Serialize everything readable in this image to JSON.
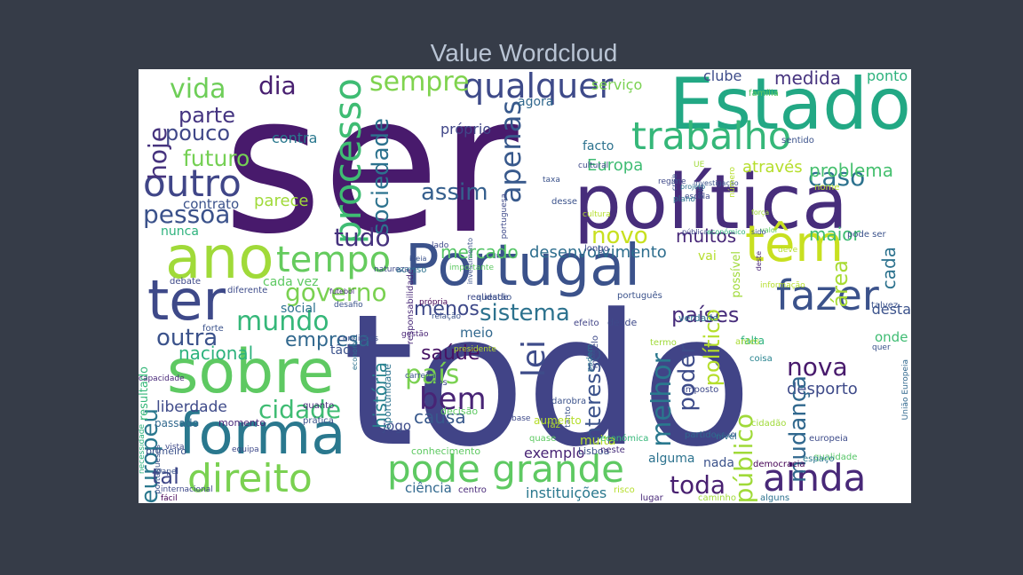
{
  "chart_data": {
    "type": "wordcloud",
    "title": "Value Wordcloud",
    "words": [
      {
        "text": "ser",
        "color": "#481a6c"
      },
      {
        "text": "todo",
        "color": "#414487"
      },
      {
        "text": "política",
        "color": "#472d7b"
      },
      {
        "text": "Estado",
        "color": "#22a884"
      },
      {
        "text": "Portugal",
        "color": "#3b528b"
      },
      {
        "text": "ano",
        "color": "#a0da39"
      },
      {
        "text": "ter",
        "color": "#3e4989"
      },
      {
        "text": "sobre",
        "color": "#5ec962"
      },
      {
        "text": "forma",
        "color": "#2a788e"
      },
      {
        "text": "trabalho",
        "color": "#35b779"
      },
      {
        "text": "têm",
        "color": "#c8e020"
      },
      {
        "text": "fazer",
        "color": "#3b528b"
      },
      {
        "text": "ainda",
        "color": "#482878"
      },
      {
        "text": "direito",
        "color": "#7ad151"
      },
      {
        "text": "pode grande",
        "color": "#5ec962"
      },
      {
        "text": "tempo",
        "color": "#65cb5e"
      },
      {
        "text": "outro",
        "color": "#404688"
      },
      {
        "text": "qualquer",
        "color": "#3e4a89"
      },
      {
        "text": "sempre",
        "color": "#7fd34e"
      },
      {
        "text": "vida",
        "color": "#6ece58"
      },
      {
        "text": "hoje",
        "color": "#46337e"
      },
      {
        "text": "dia",
        "color": "#481f70"
      },
      {
        "text": "parte",
        "color": "#453581"
      },
      {
        "text": "pouco",
        "color": "#3f4788"
      },
      {
        "text": "futuro",
        "color": "#75d054"
      },
      {
        "text": "pessoa",
        "color": "#3b528b"
      },
      {
        "text": "processo",
        "color": "#3fbc73"
      },
      {
        "text": "sociedade",
        "color": "#2c728e"
      },
      {
        "text": "apenas",
        "color": "#38598c"
      },
      {
        "text": "assim",
        "color": "#355f8d"
      },
      {
        "text": "tudo",
        "color": "#46327e"
      },
      {
        "text": "governo",
        "color": "#7ad151"
      },
      {
        "text": "mundo",
        "color": "#35b779"
      },
      {
        "text": "outra",
        "color": "#3b528b"
      },
      {
        "text": "empresa",
        "color": "#31688e"
      },
      {
        "text": "nacional",
        "color": "#2db27d"
      },
      {
        "text": "cidade",
        "color": "#3fbc73"
      },
      {
        "text": "europeu",
        "color": "#2a788e"
      },
      {
        "text": "liberdade",
        "color": "#3e4a89"
      },
      {
        "text": "tal",
        "color": "#3f4788"
      },
      {
        "text": "sistema",
        "color": "#2c728e"
      },
      {
        "text": "menos",
        "color": "#3e4989"
      },
      {
        "text": "saúde",
        "color": "#471365"
      },
      {
        "text": "país",
        "color": "#7ad151"
      },
      {
        "text": "bem",
        "color": "#482475"
      },
      {
        "text": "causa",
        "color": "#38598c"
      },
      {
        "text": "lei",
        "color": "#3e4c8a"
      },
      {
        "text": "interesse",
        "color": "#3b528b"
      },
      {
        "text": "melhor",
        "color": "#2a788e"
      },
      {
        "text": "poder",
        "color": "#3e4c8a"
      },
      {
        "text": "países",
        "color": "#472d7b"
      },
      {
        "text": "nova",
        "color": "#481a6c"
      },
      {
        "text": "desporto",
        "color": "#3e4a89"
      },
      {
        "text": "mudança",
        "color": "#31688e"
      },
      {
        "text": "público",
        "color": "#a0da39"
      },
      {
        "text": "político",
        "color": "#b5de2b"
      },
      {
        "text": "área",
        "color": "#a8db34"
      },
      {
        "text": "toda",
        "color": "#481f70"
      },
      {
        "text": "caso",
        "color": "#2c728e"
      },
      {
        "text": "problema",
        "color": "#46c06f"
      },
      {
        "text": "maior",
        "color": "#3fbc73"
      },
      {
        "text": "cada",
        "color": "#2c728e"
      },
      {
        "text": "novo",
        "color": "#c8e020"
      },
      {
        "text": "muitos",
        "color": "#482878"
      },
      {
        "text": "mercado",
        "color": "#56c667"
      },
      {
        "text": "desenvolvimento",
        "color": "#2e6e8e"
      },
      {
        "text": "medida",
        "color": "#46337e"
      },
      {
        "text": "clube",
        "color": "#3e4c8a"
      },
      {
        "text": "ponto",
        "color": "#2db27d"
      },
      {
        "text": "serviço",
        "color": "#7ad151"
      },
      {
        "text": "agora",
        "color": "#31688e"
      },
      {
        "text": "próprio",
        "color": "#404688"
      },
      {
        "text": "facto",
        "color": "#2c728e"
      },
      {
        "text": "Europa",
        "color": "#3fbc73"
      },
      {
        "text": "através",
        "color": "#b5de2b"
      },
      {
        "text": "contra",
        "color": "#2a788e"
      },
      {
        "text": "parece",
        "color": "#a0da39"
      },
      {
        "text": "contrato",
        "color": "#3b528b"
      },
      {
        "text": "nunca",
        "color": "#2db27d"
      },
      {
        "text": "social",
        "color": "#2c728e"
      },
      {
        "text": "cada vez",
        "color": "#5ec962"
      },
      {
        "text": "meio",
        "color": "#31688e"
      },
      {
        "text": "tão",
        "color": "#3b528b"
      },
      {
        "text": "jogo",
        "color": "#3e4c8a"
      },
      {
        "text": "exemplo",
        "color": "#482475"
      },
      {
        "text": "história",
        "color": "#26828e"
      },
      {
        "text": "ciência",
        "color": "#31688e"
      },
      {
        "text": "instituições",
        "color": "#2a788e"
      },
      {
        "text": "alguma",
        "color": "#2c728e"
      },
      {
        "text": "nada",
        "color": "#3b528b"
      },
      {
        "text": "desta",
        "color": "#3b528b"
      },
      {
        "text": "onde",
        "color": "#3fbc73"
      },
      {
        "text": "vai",
        "color": "#b5de2b"
      },
      {
        "text": "possível",
        "color": "#a0da39"
      },
      {
        "text": "muita",
        "color": "#b5de2b"
      },
      {
        "text": "resultado",
        "color": "#35b779"
      },
      {
        "text": "passado",
        "color": "#31688e"
      },
      {
        "text": "primeiro",
        "color": "#3b528b"
      },
      {
        "text": "momento",
        "color": "#482878"
      },
      {
        "text": "oportunidade",
        "color": "#2c728e"
      },
      {
        "text": "conhecimento",
        "color": "#5ec962"
      },
      {
        "text": "Lisboa",
        "color": "#3b528b"
      },
      {
        "text": "qualidade",
        "color": "#56c667"
      },
      {
        "text": "espaço",
        "color": "#2a788e"
      },
      {
        "text": "democracia",
        "color": "#440154"
      },
      {
        "text": "europeia",
        "color": "#3e4c8a"
      },
      {
        "text": "falta",
        "color": "#2db27d"
      },
      {
        "text": "coisa",
        "color": "#26828e"
      },
      {
        "text": "quer",
        "color": "#3b528b"
      },
      {
        "text": "antes",
        "color": "#a8db34"
      },
      {
        "text": "União Europeia",
        "color": "#31688e"
      },
      {
        "text": "talvez",
        "color": "#3b528b"
      },
      {
        "text": "verdade",
        "color": "#2c728e"
      },
      {
        "text": "desde",
        "color": "#3e4989"
      },
      {
        "text": "efeito",
        "color": "#414487"
      },
      {
        "text": "modelo",
        "color": "#3e4a89"
      },
      {
        "text": "podem",
        "color": "#2c728e"
      },
      {
        "text": "económica",
        "color": "#35b779"
      },
      {
        "text": "quase",
        "color": "#5ec962"
      },
      {
        "text": "faz",
        "color": "#b5de2b"
      },
      {
        "text": "tanto",
        "color": "#3b528b"
      },
      {
        "text": "aumento",
        "color": "#b5de2b"
      },
      {
        "text": "base",
        "color": "#3e4989"
      },
      {
        "text": "decisão",
        "color": "#5ec962"
      },
      {
        "text": "carreira",
        "color": "#3b528b"
      },
      {
        "text": "dos",
        "color": "#3e4989"
      },
      {
        "text": "darobra",
        "color": "#3b528b"
      },
      {
        "text": "centro",
        "color": "#482878"
      },
      {
        "text": "risco",
        "color": "#b5de2b"
      },
      {
        "text": "lugar",
        "color": "#482878"
      },
      {
        "text": "caminho",
        "color": "#a0da39"
      },
      {
        "text": "alguns",
        "color": "#2c728e"
      },
      {
        "text": "cidadão",
        "color": "#a0da39"
      },
      {
        "text": "apoio",
        "color": "#3b528b"
      },
      {
        "text": "partido",
        "color": "#31688e"
      },
      {
        "text": "neste",
        "color": "#472d7b"
      },
      {
        "text": "vista",
        "color": "#3e4989"
      },
      {
        "text": "papel",
        "color": "#3b528b"
      },
      {
        "text": "internacional",
        "color": "#3e4989"
      },
      {
        "text": "fácil",
        "color": "#440154"
      },
      {
        "text": "necessidade",
        "color": "#2db27d"
      },
      {
        "text": "capacidade",
        "color": "#482878"
      },
      {
        "text": "portugueses",
        "color": "#3b528b"
      },
      {
        "text": "equipa",
        "color": "#3e4989"
      },
      {
        "text": "quanto",
        "color": "#482878"
      },
      {
        "text": "prática",
        "color": "#3b528b"
      },
      {
        "text": "realidade",
        "color": "#3e4989"
      },
      {
        "text": "questão",
        "color": "#3b528b"
      },
      {
        "text": "diferente",
        "color": "#3e4c8a"
      },
      {
        "text": "condições",
        "color": "#3e4c8a"
      },
      {
        "text": "natureza",
        "color": "#3e4989"
      },
      {
        "text": "economia",
        "color": "#2c728e"
      },
      {
        "text": "futebol",
        "color": "#472d7b"
      },
      {
        "text": "acesso",
        "color": "#2c728e"
      },
      {
        "text": "desafio",
        "color": "#3b528b"
      },
      {
        "text": "relação",
        "color": "#3b528b"
      },
      {
        "text": "importante",
        "color": "#5ec962"
      },
      {
        "text": "gestão",
        "color": "#482475"
      },
      {
        "text": "presidente",
        "color": "#b5de2b"
      },
      {
        "text": "responsabilidade",
        "color": "#482878"
      },
      {
        "text": "portuguesa",
        "color": "#3e4989"
      },
      {
        "text": "taxa",
        "color": "#3b528b"
      },
      {
        "text": "cultural",
        "color": "#3e4989"
      },
      {
        "text": "ideia",
        "color": "#3b528b"
      },
      {
        "text": "própria",
        "color": "#440154"
      },
      {
        "text": "lado",
        "color": "#3e4989"
      },
      {
        "text": "investimento",
        "color": "#3b528b"
      },
      {
        "text": "cultura",
        "color": "#b5de2b"
      },
      {
        "text": "escola",
        "color": "#3e4989"
      },
      {
        "text": "regime",
        "color": "#3e4989"
      },
      {
        "text": "investigação",
        "color": "#3b528b"
      },
      {
        "text": "SNS",
        "color": "#3e4989"
      },
      {
        "text": "UE",
        "color": "#a0da39"
      },
      {
        "text": "plano",
        "color": "#2c728e"
      },
      {
        "text": "projeto",
        "color": "#2c728e"
      },
      {
        "text": "crise",
        "color": "#3b528b"
      },
      {
        "text": "número",
        "color": "#b5de2b"
      },
      {
        "text": "pública",
        "color": "#3e4989"
      },
      {
        "text": "económico",
        "color": "#2db27d"
      },
      {
        "text": "força",
        "color": "#a0da39"
      },
      {
        "text": "valor",
        "color": "#5ec962"
      },
      {
        "text": "sido",
        "color": "#3b528b"
      },
      {
        "text": "deve",
        "color": "#b5de2b"
      },
      {
        "text": "deste",
        "color": "#482475"
      },
      {
        "text": "informação",
        "color": "#b5de2b"
      },
      {
        "text": "desse",
        "color": "#3b528b"
      },
      {
        "text": "longo",
        "color": "#3e4989"
      },
      {
        "text": "português",
        "color": "#3b528b"
      },
      {
        "text": "termo",
        "color": "#a0da39"
      },
      {
        "text": "imposto",
        "color": "#3e4989"
      },
      {
        "text": "nível",
        "color": "#2c728e"
      },
      {
        "text": "família",
        "color": "#5ec962"
      },
      {
        "text": "sentido",
        "color": "#3b528b"
      },
      {
        "text": "nome",
        "color": "#b5de2b"
      },
      {
        "text": "pode ser",
        "color": "#3b528b"
      },
      {
        "text": "debate",
        "color": "#3e4989"
      },
      {
        "text": "forte",
        "color": "#3b528b"
      }
    ]
  }
}
